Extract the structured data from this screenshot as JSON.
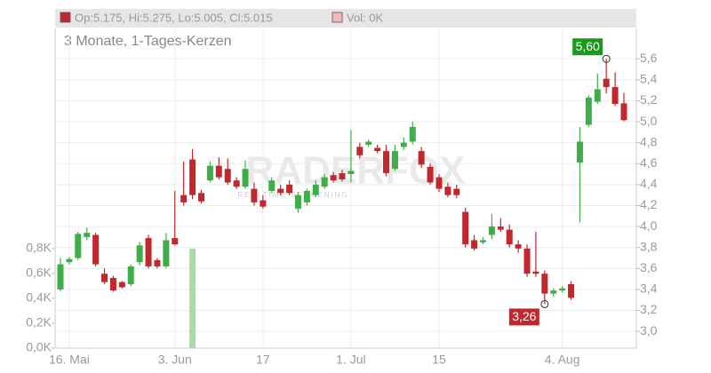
{
  "chart_data": {
    "type": "candlestick",
    "header": {
      "ohlc": "Op:5.175, Hi:5.275, Lo:5.005, Cl:5.015",
      "volume": "Vol: 0K"
    },
    "subtitle": "3 Monate, 1-Tages-Kerzen",
    "watermark": {
      "brand": "RADERFOX",
      "tagline": "REALTIME SCREENING"
    },
    "categories": [
      null,
      "16. Mai",
      null,
      null,
      null,
      null,
      null,
      null,
      null,
      null,
      null,
      null,
      null,
      "3. Jun",
      null,
      null,
      null,
      null,
      null,
      null,
      null,
      null,
      null,
      "17",
      null,
      null,
      null,
      null,
      null,
      null,
      null,
      null,
      null,
      "1. Jul",
      null,
      null,
      null,
      null,
      null,
      null,
      null,
      null,
      null,
      "15",
      null,
      null,
      null,
      null,
      null,
      null,
      null,
      null,
      null,
      null,
      null,
      null,
      null,
      "4. Aug",
      null,
      null,
      null,
      null,
      null,
      null,
      null
    ],
    "open": [
      3.4,
      3.66,
      3.7,
      3.9,
      3.92,
      3.55,
      3.51,
      3.47,
      3.45,
      3.66,
      3.89,
      3.68,
      3.62,
      3.89,
      4.3,
      4.64,
      4.32,
      4.44,
      4.58,
      4.55,
      4.44,
      4.38,
      4.36,
      4.25,
      4.34,
      4.36,
      4.4,
      4.17,
      4.23,
      4.3,
      4.38,
      4.49,
      4.51,
      4.5,
      4.76,
      4.78,
      4.75,
      4.72,
      4.55,
      4.76,
      4.81,
      4.72,
      4.57,
      4.47,
      4.38,
      4.36,
      4.14,
      3.87,
      3.85,
      3.92,
      4.0,
      3.97,
      3.83,
      3.79,
      3.57,
      3.55,
      3.36,
      3.39,
      3.45,
      4.61,
      4.97,
      5.19,
      5.41,
      5.33,
      5.175
    ],
    "high": [
      3.7,
      3.71,
      3.95,
      3.99,
      3.94,
      3.6,
      3.53,
      3.48,
      3.64,
      3.85,
      3.92,
      3.7,
      3.94,
      4.34,
      4.62,
      4.74,
      4.35,
      4.62,
      4.66,
      4.65,
      4.47,
      4.63,
      4.42,
      4.3,
      4.47,
      4.4,
      4.44,
      4.33,
      4.36,
      4.44,
      4.5,
      4.52,
      4.54,
      4.92,
      4.8,
      4.83,
      4.78,
      4.78,
      4.78,
      4.85,
      5.0,
      4.76,
      4.6,
      4.5,
      4.42,
      4.4,
      4.18,
      3.92,
      3.9,
      4.12,
      4.08,
      4.02,
      3.87,
      3.83,
      3.95,
      3.58,
      3.41,
      3.43,
      3.48,
      4.95,
      5.25,
      5.46,
      5.6,
      5.47,
      5.275
    ],
    "low": [
      3.38,
      3.64,
      3.68,
      3.87,
      3.62,
      3.45,
      3.38,
      3.41,
      3.43,
      3.63,
      3.6,
      3.6,
      3.6,
      3.82,
      4.2,
      4.26,
      4.22,
      4.42,
      4.45,
      4.4,
      4.36,
      4.36,
      4.2,
      4.17,
      4.32,
      4.3,
      4.3,
      4.13,
      4.2,
      4.28,
      4.36,
      4.42,
      4.43,
      4.42,
      4.65,
      4.76,
      4.7,
      4.48,
      4.53,
      4.73,
      4.78,
      4.56,
      4.4,
      4.33,
      4.28,
      4.27,
      3.8,
      3.77,
      3.83,
      3.88,
      3.95,
      3.8,
      3.75,
      3.52,
      3.52,
      3.26,
      3.33,
      3.37,
      3.3,
      4.04,
      4.95,
      5.17,
      5.27,
      5.15,
      5.005
    ],
    "close": [
      3.64,
      3.69,
      3.93,
      3.94,
      3.64,
      3.47,
      3.39,
      3.42,
      3.62,
      3.82,
      3.62,
      3.62,
      3.87,
      3.83,
      4.23,
      4.3,
      4.24,
      4.58,
      4.47,
      4.42,
      4.38,
      4.55,
      4.23,
      4.19,
      4.44,
      4.32,
      4.32,
      4.3,
      4.34,
      4.4,
      4.47,
      4.44,
      4.45,
      4.53,
      4.68,
      4.81,
      4.72,
      4.51,
      4.72,
      4.8,
      4.95,
      4.59,
      4.42,
      4.36,
      4.3,
      4.3,
      3.83,
      3.79,
      3.87,
      4.0,
      3.97,
      3.83,
      3.79,
      3.55,
      3.55,
      3.36,
      3.39,
      3.41,
      3.32,
      4.81,
      5.23,
      5.31,
      5.33,
      5.17,
      5.015
    ],
    "volume": [
      0,
      0,
      0,
      0,
      0,
      0,
      0,
      0,
      0,
      0,
      0,
      0,
      0,
      0,
      0,
      0.8,
      0,
      0,
      0,
      0,
      0,
      0,
      0,
      0,
      0,
      0,
      0,
      0,
      0,
      0,
      0,
      0,
      0,
      0,
      0,
      0,
      0,
      0,
      0,
      0,
      0,
      0,
      0,
      0,
      0,
      0,
      0,
      0,
      0,
      0,
      0,
      0,
      0,
      0,
      0,
      0,
      0,
      0,
      0,
      0,
      0,
      0,
      0,
      0,
      0
    ],
    "up_color": "#3fae49",
    "down_color": "#c0282d",
    "volume_color": "#a8dba8",
    "ylim": [
      2.84,
      5.89
    ],
    "yticks": [
      {
        "value": 3.0,
        "label": "3,0"
      },
      {
        "value": 3.2,
        "label": "3,2"
      },
      {
        "value": 3.4,
        "label": "3,4"
      },
      {
        "value": 3.6,
        "label": "3,6"
      },
      {
        "value": 3.8,
        "label": "3,8"
      },
      {
        "value": 4.0,
        "label": "4,0"
      },
      {
        "value": 4.2,
        "label": "4,2"
      },
      {
        "value": 4.4,
        "label": "4,4"
      },
      {
        "value": 4.6,
        "label": "4,6"
      },
      {
        "value": 4.8,
        "label": "4,8"
      },
      {
        "value": 5.0,
        "label": "5,0"
      },
      {
        "value": 5.2,
        "label": "5,2"
      },
      {
        "value": 5.4,
        "label": "5,4"
      },
      {
        "value": 5.6,
        "label": "5,6"
      }
    ],
    "y2lim": [
      0,
      2.57
    ],
    "y2ticks": [
      {
        "value": 0,
        "label": "0,0K"
      },
      {
        "value": 0.2,
        "label": "0,2K"
      },
      {
        "value": 0.4,
        "label": "0,4K"
      },
      {
        "value": 0.6,
        "label": "0,6K"
      },
      {
        "value": 0.8,
        "label": "0,8K"
      }
    ],
    "annotations": [
      {
        "label": "5,60",
        "value": 5.6,
        "kind": "high",
        "color": "#1a9a1a"
      },
      {
        "label": "3,26",
        "value": 3.26,
        "kind": "low",
        "color": "#c0282d"
      }
    ],
    "grid": true
  }
}
